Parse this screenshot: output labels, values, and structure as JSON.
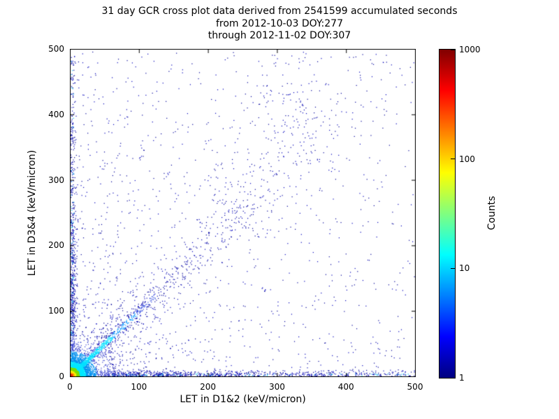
{
  "chart_data": {
    "type": "scatter",
    "title": "31 day GCR cross plot data derived from 2541599 accumulated seconds",
    "subtitle_from": "from 2012-10-03 DOY:277",
    "subtitle_through": "through 2012-11-02 DOY:307",
    "accumulated_seconds": 2541599,
    "xlabel": "LET in D1&2 (keV/micron)",
    "ylabel": "LET in D3&4 (keV/micron)",
    "xlim": [
      0,
      500
    ],
    "ylim": [
      0,
      500
    ],
    "xticks": [
      0,
      100,
      200,
      300,
      400,
      500
    ],
    "yticks": [
      0,
      100,
      200,
      300,
      400,
      500
    ],
    "grid": false,
    "description": "Density cross plot: intense hotspot at the origin (counts approaching 1000), bright cyan correlated band along y=x out to ~90 keV/micron fading into a sparse widening diagonal to ~450, single-count (dark blue) events hugging both axes across the full range, faint rays radiating from the origin, and sparse background points everywhere.",
    "colorbar": {
      "label": "Counts",
      "scale": "log",
      "min": 1,
      "max": 1000,
      "ticks": [
        1,
        10,
        100,
        1000
      ],
      "colormap": "jet",
      "stops": [
        [
          0.0,
          "#000080"
        ],
        [
          0.125,
          "#0000ff"
        ],
        [
          0.375,
          "#00ffff"
        ],
        [
          0.625,
          "#ffff00"
        ],
        [
          0.875,
          "#ff0000"
        ],
        [
          1.0,
          "#800000"
        ]
      ]
    },
    "point_colors": {
      "core_radial": [
        [
          3,
          "#e62200"
        ],
        [
          5,
          "#ff9900"
        ],
        [
          8,
          "#ffee00"
        ],
        [
          13,
          "#7ddd00"
        ],
        [
          22,
          "#00e8ff"
        ]
      ],
      "core_cut": 22,
      "diagonal_radial": [
        [
          85,
          "#00dfff"
        ],
        [
          135,
          "#0095ff"
        ],
        [
          175,
          "#2a44dd"
        ]
      ],
      "outer_radial": [
        [
          38,
          "#0090ee"
        ],
        [
          60,
          "#2a35cc"
        ]
      ],
      "edge_accent": "#00bbee",
      "edge_accent_prob": 0.15,
      "default": "#000099",
      "default_alt": "#0000bb"
    },
    "components": [
      {
        "type": "background",
        "n": 1000,
        "power": 1.4
      },
      {
        "type": "hband",
        "n": 1000,
        "decay": 180,
        "thickness": 4
      },
      {
        "type": "vband",
        "n": 800,
        "decay": 150,
        "thickness": 4
      },
      {
        "type": "rays",
        "n": 480,
        "slopes": [
          0.2,
          0.3,
          0.45,
          0.65,
          1.5,
          2.2,
          3.3,
          5.0
        ],
        "decay": 55,
        "jitter": 1.5
      },
      {
        "type": "blob",
        "n": 120,
        "cx": 310,
        "cy": 395,
        "sx": 30,
        "sy": 45
      },
      {
        "type": "blob",
        "n": 80,
        "cx": 240,
        "cy": 260,
        "sx": 25,
        "sy": 30
      },
      {
        "type": "diagonal",
        "n": 750,
        "decay": 150,
        "width": 6,
        "widen": 0.05
      },
      {
        "type": "diagonal",
        "n": 900,
        "decay": 34,
        "width": 2.2,
        "widen": 0.02
      },
      {
        "type": "cluster",
        "n": 1500,
        "spread": 14
      },
      {
        "type": "cluster",
        "n": 2600,
        "spread": 5
      }
    ]
  }
}
